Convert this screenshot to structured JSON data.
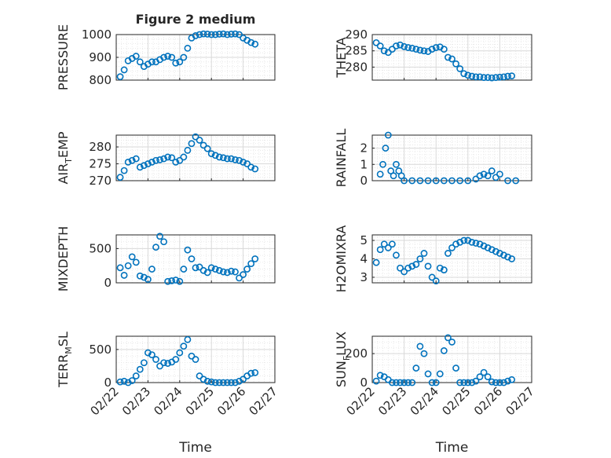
{
  "figure": {
    "title": "Figure 2 medium",
    "xlabel": "Time",
    "date_ticks": [
      "02/22",
      "02/23",
      "02/24",
      "02/25",
      "02/26",
      "02/27"
    ],
    "marker_color": "#0072BD",
    "grid": true
  },
  "chart_data": [
    {
      "type": "scatter",
      "ylabel": "PRESSURE",
      "ylim": [
        800,
        1000
      ],
      "yticks": [
        800,
        900,
        1000
      ],
      "x": [
        "02/22 03:00",
        "02/22 06:00",
        "02/22 09:00",
        "02/22 12:00",
        "02/22 15:00",
        "02/22 18:00",
        "02/22 21:00",
        "02/23 00:00",
        "02/23 03:00",
        "02/23 06:00",
        "02/23 09:00",
        "02/23 12:00",
        "02/23 15:00",
        "02/23 18:00",
        "02/23 21:00",
        "02/24 00:00",
        "02/24 03:00",
        "02/24 06:00",
        "02/24 09:00",
        "02/24 12:00",
        "02/24 15:00",
        "02/24 18:00",
        "02/24 21:00",
        "02/25 00:00",
        "02/25 03:00",
        "02/25 06:00",
        "02/25 09:00",
        "02/25 12:00",
        "02/25 15:00",
        "02/25 18:00",
        "02/25 21:00",
        "02/26 00:00",
        "02/26 03:00",
        "02/26 06:00",
        "02/26 09:00"
      ],
      "y": [
        815,
        845,
        885,
        895,
        905,
        880,
        860,
        870,
        880,
        880,
        890,
        900,
        905,
        900,
        875,
        880,
        900,
        940,
        985,
        995,
        1000,
        1003,
        1002,
        1000,
        1000,
        1002,
        1003,
        1000,
        1002,
        1003,
        1000,
        985,
        975,
        965,
        958
      ]
    },
    {
      "type": "scatter",
      "ylabel": "THETA",
      "ylim": [
        276,
        290
      ],
      "yticks": [
        280,
        285,
        290
      ],
      "x": [
        "02/22 03:00",
        "02/22 06:00",
        "02/22 09:00",
        "02/22 12:00",
        "02/22 15:00",
        "02/22 18:00",
        "02/22 21:00",
        "02/23 00:00",
        "02/23 03:00",
        "02/23 06:00",
        "02/23 09:00",
        "02/23 12:00",
        "02/23 15:00",
        "02/23 18:00",
        "02/23 21:00",
        "02/24 00:00",
        "02/24 03:00",
        "02/24 06:00",
        "02/24 09:00",
        "02/24 12:00",
        "02/24 15:00",
        "02/24 18:00",
        "02/24 21:00",
        "02/25 00:00",
        "02/25 03:00",
        "02/25 06:00",
        "02/25 09:00",
        "02/25 12:00",
        "02/25 15:00",
        "02/25 18:00",
        "02/25 21:00",
        "02/26 00:00",
        "02/26 03:00",
        "02/26 06:00",
        "02/26 09:00"
      ],
      "y": [
        287.5,
        286.5,
        285,
        284.5,
        285.5,
        286.5,
        286.8,
        286.3,
        286,
        285.8,
        285.5,
        285.2,
        285,
        284.8,
        285.5,
        286,
        286.2,
        285.5,
        283,
        282.5,
        281,
        279.5,
        278,
        277.5,
        277.2,
        277,
        277,
        276.8,
        276.8,
        276.7,
        276.8,
        276.9,
        277,
        277.2,
        277.3
      ]
    },
    {
      "type": "scatter",
      "ylabel_parts": [
        "AIR",
        "T",
        "EMP"
      ],
      "ylim": [
        270,
        283.5
      ],
      "yticks": [
        270,
        275,
        280
      ],
      "x": [
        "02/22 03:00",
        "02/22 06:00",
        "02/22 09:00",
        "02/22 12:00",
        "02/22 15:00",
        "02/22 18:00",
        "02/22 21:00",
        "02/23 00:00",
        "02/23 03:00",
        "02/23 06:00",
        "02/23 09:00",
        "02/23 12:00",
        "02/23 15:00",
        "02/23 18:00",
        "02/23 21:00",
        "02/24 00:00",
        "02/24 03:00",
        "02/24 06:00",
        "02/24 09:00",
        "02/24 12:00",
        "02/24 15:00",
        "02/24 18:00",
        "02/24 21:00",
        "02/25 00:00",
        "02/25 03:00",
        "02/25 06:00",
        "02/25 09:00",
        "02/25 12:00",
        "02/25 15:00",
        "02/25 18:00",
        "02/25 21:00",
        "02/26 00:00",
        "02/26 03:00",
        "02/26 06:00",
        "02/26 09:00"
      ],
      "y": [
        271,
        273,
        275.5,
        276,
        276.5,
        274,
        274.5,
        275,
        275.5,
        276,
        276.2,
        276.5,
        277,
        276.8,
        275.5,
        276,
        277,
        279,
        281,
        283,
        282,
        280.5,
        279.5,
        278,
        277.5,
        277,
        276.8,
        276.5,
        276.5,
        276.2,
        276,
        275.5,
        275,
        274,
        273.5
      ]
    },
    {
      "type": "scatter",
      "ylabel": "RAINFALL",
      "ylim": [
        0,
        2.8
      ],
      "yticks": [
        0,
        1,
        2
      ],
      "x": [
        "02/22 06:00",
        "02/22 08:00",
        "02/22 10:00",
        "02/22 12:00",
        "02/22 14:00",
        "02/22 16:00",
        "02/22 18:00",
        "02/22 20:00",
        "02/22 22:00",
        "02/23 00:00",
        "02/23 06:00",
        "02/23 12:00",
        "02/23 18:00",
        "02/24 00:00",
        "02/24 06:00",
        "02/24 12:00",
        "02/24 18:00",
        "02/25 00:00",
        "02/25 06:00",
        "02/25 09:00",
        "02/25 12:00",
        "02/25 15:00",
        "02/25 18:00",
        "02/25 21:00",
        "02/26 00:00",
        "02/26 06:00",
        "02/26 12:00"
      ],
      "y": [
        0.4,
        1.0,
        2.0,
        2.8,
        0.6,
        0.3,
        1.0,
        0.6,
        0.3,
        0,
        0,
        0,
        0,
        0,
        0,
        0,
        0,
        0,
        0.1,
        0.3,
        0.4,
        0.3,
        0.6,
        0.2,
        0.4,
        0,
        0
      ]
    },
    {
      "type": "scatter",
      "ylabel": "MIXDEPTH",
      "ylim": [
        0,
        700
      ],
      "yticks": [
        0,
        500
      ],
      "x": [
        "02/22 03:00",
        "02/22 06:00",
        "02/22 09:00",
        "02/22 12:00",
        "02/22 15:00",
        "02/22 18:00",
        "02/22 21:00",
        "02/23 00:00",
        "02/23 03:00",
        "02/23 06:00",
        "02/23 09:00",
        "02/23 12:00",
        "02/23 15:00",
        "02/23 18:00",
        "02/23 21:00",
        "02/24 00:00",
        "02/24 03:00",
        "02/24 06:00",
        "02/24 09:00",
        "02/24 12:00",
        "02/24 15:00",
        "02/24 18:00",
        "02/24 21:00",
        "02/25 00:00",
        "02/25 03:00",
        "02/25 06:00",
        "02/25 09:00",
        "02/25 12:00",
        "02/25 15:00",
        "02/25 18:00",
        "02/25 21:00",
        "02/26 00:00",
        "02/26 03:00",
        "02/26 06:00",
        "02/26 09:00"
      ],
      "y": [
        220,
        110,
        250,
        380,
        300,
        100,
        80,
        50,
        200,
        520,
        680,
        600,
        20,
        30,
        40,
        20,
        200,
        480,
        350,
        220,
        230,
        180,
        150,
        220,
        200,
        180,
        160,
        150,
        170,
        160,
        70,
        120,
        200,
        280,
        350
      ]
    },
    {
      "type": "scatter",
      "ylabel": "H2OMIXRA",
      "ylim": [
        2.7,
        5.3
      ],
      "yticks": [
        3,
        4,
        5
      ],
      "x": [
        "02/22 03:00",
        "02/22 06:00",
        "02/22 09:00",
        "02/22 12:00",
        "02/22 15:00",
        "02/22 18:00",
        "02/22 21:00",
        "02/23 00:00",
        "02/23 03:00",
        "02/23 06:00",
        "02/23 09:00",
        "02/23 12:00",
        "02/23 15:00",
        "02/23 18:00",
        "02/23 21:00",
        "02/24 00:00",
        "02/24 03:00",
        "02/24 06:00",
        "02/24 09:00",
        "02/24 12:00",
        "02/24 15:00",
        "02/24 18:00",
        "02/24 21:00",
        "02/25 00:00",
        "02/25 03:00",
        "02/25 06:00",
        "02/25 09:00",
        "02/25 12:00",
        "02/25 15:00",
        "02/25 18:00",
        "02/25 21:00",
        "02/26 00:00",
        "02/26 03:00",
        "02/26 06:00",
        "02/26 09:00"
      ],
      "y": [
        3.8,
        4.5,
        4.8,
        4.6,
        4.8,
        4.2,
        3.5,
        3.3,
        3.5,
        3.6,
        3.7,
        4.0,
        4.3,
        3.6,
        3.0,
        2.8,
        3.5,
        3.4,
        4.3,
        4.6,
        4.8,
        4.9,
        5.0,
        5.0,
        4.9,
        4.85,
        4.8,
        4.7,
        4.6,
        4.5,
        4.4,
        4.3,
        4.2,
        4.1,
        4.0
      ]
    },
    {
      "type": "scatter",
      "ylabel_parts": [
        "TERR",
        "M",
        "SL"
      ],
      "ylim": [
        0,
        700
      ],
      "yticks": [
        0,
        500
      ],
      "x": [
        "02/22 03:00",
        "02/22 06:00",
        "02/22 09:00",
        "02/22 12:00",
        "02/22 15:00",
        "02/22 18:00",
        "02/22 21:00",
        "02/23 00:00",
        "02/23 03:00",
        "02/23 06:00",
        "02/23 09:00",
        "02/23 12:00",
        "02/23 15:00",
        "02/23 18:00",
        "02/23 21:00",
        "02/24 00:00",
        "02/24 03:00",
        "02/24 06:00",
        "02/24 09:00",
        "02/24 12:00",
        "02/24 15:00",
        "02/24 18:00",
        "02/24 21:00",
        "02/25 00:00",
        "02/25 03:00",
        "02/25 06:00",
        "02/25 09:00",
        "02/25 12:00",
        "02/25 15:00",
        "02/25 18:00",
        "02/25 21:00",
        "02/26 00:00",
        "02/26 03:00",
        "02/26 06:00",
        "02/26 09:00"
      ],
      "y": [
        10,
        20,
        0,
        30,
        100,
        200,
        300,
        450,
        420,
        350,
        250,
        300,
        290,
        310,
        350,
        450,
        550,
        650,
        400,
        350,
        100,
        50,
        20,
        10,
        0,
        0,
        0,
        0,
        0,
        0,
        20,
        50,
        100,
        140,
        150
      ]
    },
    {
      "type": "scatter",
      "ylabel_parts": [
        "SUN",
        "F",
        "LUX"
      ],
      "ylim": [
        0,
        320
      ],
      "yticks": [
        0,
        200
      ],
      "x": [
        "02/22 03:00",
        "02/22 06:00",
        "02/22 09:00",
        "02/22 12:00",
        "02/22 15:00",
        "02/22 18:00",
        "02/22 21:00",
        "02/23 00:00",
        "02/23 03:00",
        "02/23 06:00",
        "02/23 09:00",
        "02/23 12:00",
        "02/23 15:00",
        "02/23 18:00",
        "02/23 21:00",
        "02/24 00:00",
        "02/24 03:00",
        "02/24 06:00",
        "02/24 09:00",
        "02/24 12:00",
        "02/24 15:00",
        "02/24 18:00",
        "02/24 21:00",
        "02/25 00:00",
        "02/25 03:00",
        "02/25 06:00",
        "02/25 09:00",
        "02/25 12:00",
        "02/25 15:00",
        "02/25 18:00",
        "02/25 21:00",
        "02/26 00:00",
        "02/26 03:00",
        "02/26 06:00",
        "02/26 09:00"
      ],
      "y": [
        10,
        50,
        40,
        20,
        0,
        0,
        0,
        0,
        0,
        0,
        100,
        250,
        200,
        60,
        0,
        0,
        60,
        220,
        310,
        280,
        100,
        0,
        0,
        0,
        0,
        10,
        40,
        70,
        40,
        5,
        0,
        0,
        0,
        10,
        20
      ]
    }
  ]
}
